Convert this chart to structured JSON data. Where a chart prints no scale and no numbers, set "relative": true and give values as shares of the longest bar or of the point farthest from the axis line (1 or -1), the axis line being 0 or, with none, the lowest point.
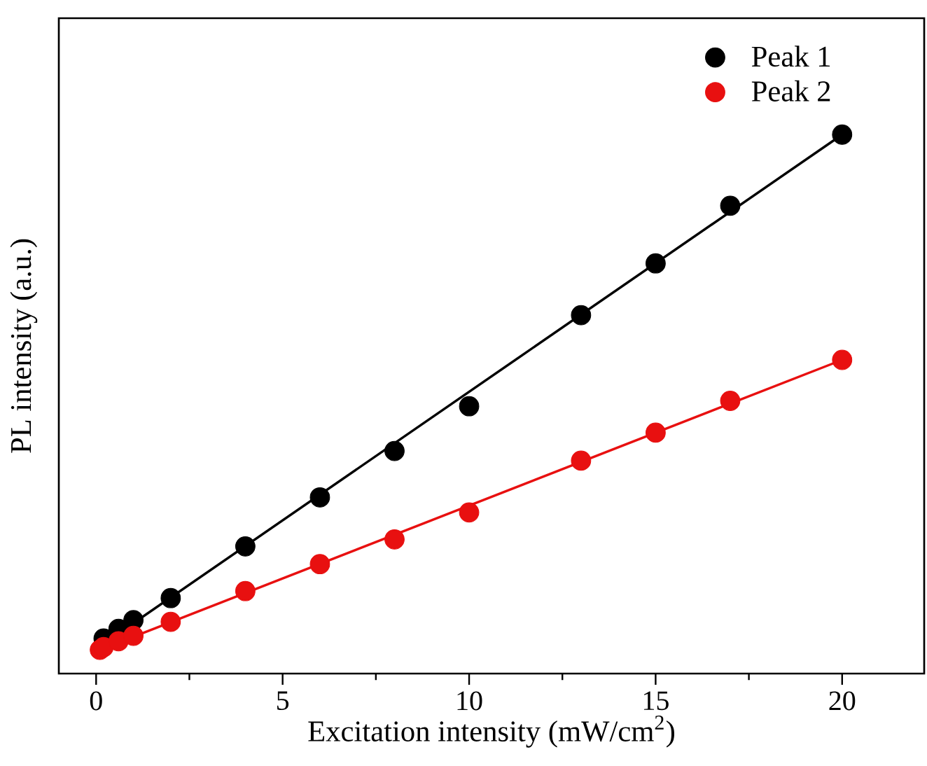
{
  "chart_data": {
    "type": "scatter",
    "xlabel": "Excitation intensity (mW/cm$^{2}$)",
    "ylabel": "PL intensity (a.u.)",
    "relative": true,
    "xlim": [
      -1,
      22.2
    ],
    "xticks": [
      0,
      5,
      10,
      15,
      20
    ],
    "legend": "top right",
    "series": [
      {
        "name": "Peak 1",
        "color": "#000000",
        "x": [
          0.2,
          0.6,
          1,
          2,
          4,
          6,
          8,
          10,
          13,
          15,
          17,
          20
        ],
        "values": [
          0.065,
          0.083,
          0.099,
          0.14,
          0.236,
          0.327,
          0.413,
          0.496,
          0.665,
          0.761,
          0.868,
          1
        ]
      },
      {
        "name": "Peak 2",
        "color": "#e81010",
        "x": [
          0.1,
          0.2,
          0.6,
          1,
          2,
          4,
          6,
          8,
          10,
          13,
          15,
          17,
          20
        ],
        "values": [
          0.044,
          0.049,
          0.06,
          0.07,
          0.096,
          0.153,
          0.203,
          0.249,
          0.299,
          0.395,
          0.447,
          0.506,
          0.582
        ]
      },
      {
        "type": "line",
        "color": "#000000",
        "x": [
          0.3,
          20
        ],
        "values": [
          0.06,
          1
        ]
      },
      {
        "type": "line",
        "color": "#e81010",
        "x": [
          0.1,
          20
        ],
        "values": [
          0.044,
          0.582
        ]
      }
    ]
  }
}
